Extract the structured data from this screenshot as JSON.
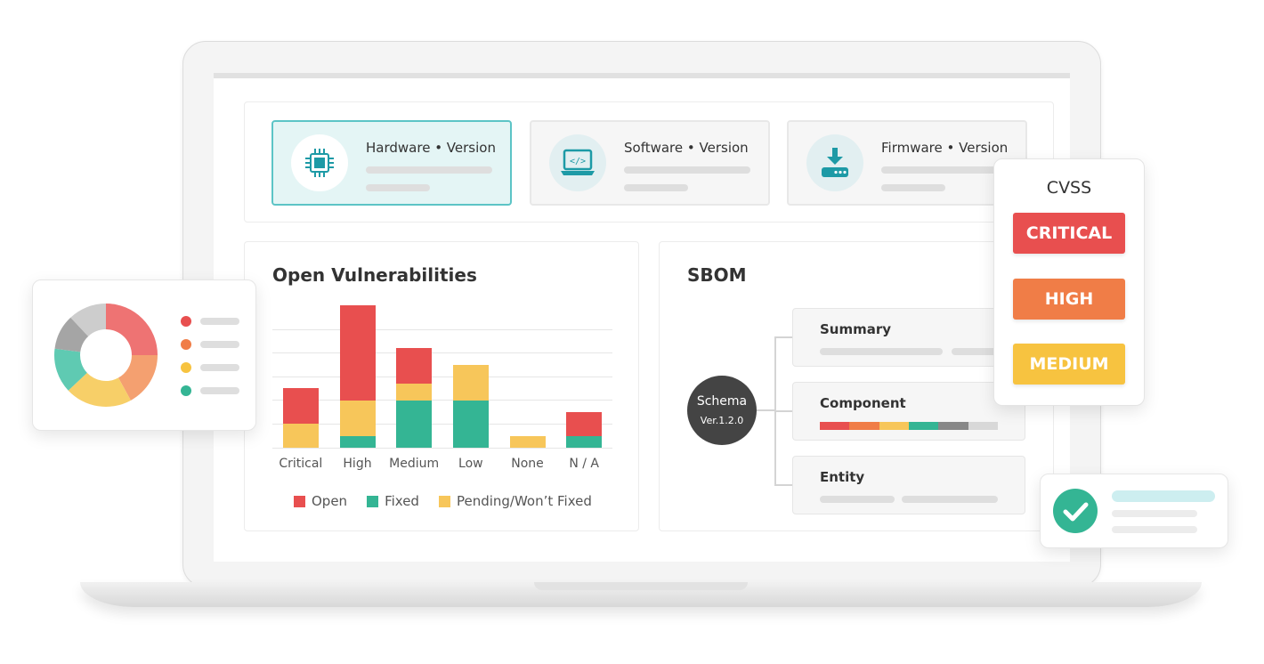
{
  "versions": [
    {
      "title": "Hardware • Version",
      "icon": "chip-icon",
      "active": true
    },
    {
      "title": "Software • Version",
      "icon": "laptop-code-icon",
      "active": false
    },
    {
      "title": "Firmware • Version",
      "icon": "firmware-download-icon",
      "active": false
    }
  ],
  "vulnerabilities": {
    "title": "Open Vulnerabilities"
  },
  "chart_data": {
    "type": "bar",
    "stacked": true,
    "title": "Open Vulnerabilities",
    "categories": [
      "Critical",
      "High",
      "Medium",
      "Low",
      "None",
      "N / A"
    ],
    "series": [
      {
        "name": "Fixed",
        "color": "#34b594",
        "values": [
          0,
          1,
          4,
          4,
          0,
          1
        ]
      },
      {
        "name": "Pending/Won’t Fixed",
        "color": "#f7c65a",
        "values": [
          2,
          3,
          1.4,
          3,
          1,
          0
        ]
      },
      {
        "name": "Open",
        "color": "#e84f4f",
        "values": [
          3,
          8,
          3,
          0,
          0,
          2
        ]
      }
    ],
    "ylim": [
      0,
      12
    ],
    "grid": true,
    "legend": [
      {
        "label": "Open",
        "color": "#e84f4f"
      },
      {
        "label": "Fixed",
        "color": "#34b594"
      },
      {
        "label": "Pending/Won’t Fixed",
        "color": "#f7c65a"
      }
    ],
    "legend_position": "bottom"
  },
  "sbom": {
    "title": "SBOM",
    "schema_label": "Schema",
    "schema_version": "Ver.1.2.0",
    "nodes": [
      {
        "label": "Summary"
      },
      {
        "label": "Component"
      },
      {
        "label": "Entity"
      }
    ],
    "component_colors": [
      "#e84f4f",
      "#f07d47",
      "#f7c65a",
      "#34b594",
      "#888888",
      "#d8d8d8"
    ]
  },
  "cvss": {
    "title": "CVSS",
    "levels": [
      {
        "label": "CRITICAL",
        "color": "#e84f4f"
      },
      {
        "label": "HIGH",
        "color": "#f07d47"
      },
      {
        "label": "MEDIUM",
        "color": "#f7c340"
      }
    ]
  },
  "donut": {
    "segments": [
      {
        "color": "#ee7373",
        "value": 25
      },
      {
        "color": "#f4a070",
        "value": 17
      },
      {
        "color": "#f7cf68",
        "value": 21
      },
      {
        "color": "#5fcab2",
        "value": 14
      },
      {
        "color": "#a5a5a5",
        "value": 11
      },
      {
        "color": "#cdcdcd",
        "value": 12
      }
    ],
    "legend_colors": [
      "#e84f4f",
      "#f07d47",
      "#f7c340",
      "#34b594"
    ]
  },
  "status": {
    "icon": "check-circle-icon",
    "color": "#34b594"
  }
}
